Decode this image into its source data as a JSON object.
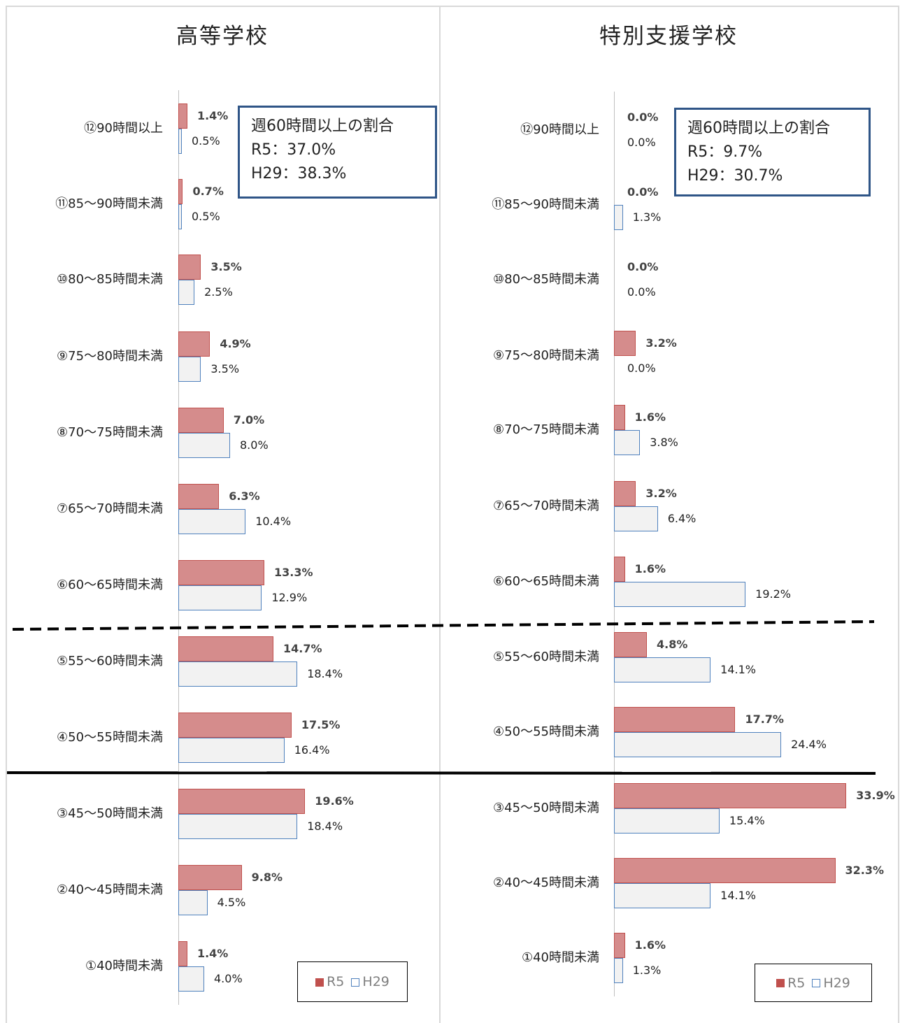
{
  "chart_data": [
    {
      "type": "bar",
      "title": "高等学校",
      "categories": [
        "⑫90時間以上",
        "⑪85～90時間未満",
        "⑩80～85時間未満",
        "⑨75～80時間未満",
        "⑧70～75時間未満",
        "⑦65～70時間未満",
        "⑥60～65時間未満",
        "⑤55～60時間未満",
        "④50～55時間未満",
        "③45～50時間未満",
        "②40～45時間未満",
        "①40時間未満"
      ],
      "series": [
        {
          "name": "R5",
          "values": [
            1.4,
            0.7,
            3.5,
            4.9,
            7.0,
            6.3,
            13.3,
            14.7,
            17.5,
            19.6,
            9.8,
            1.4
          ],
          "labels": [
            "1.4%",
            "0.7%",
            "3.5%",
            "4.9%",
            "7.0%",
            "6.3%",
            "13.3%",
            "14.7%",
            "17.5%",
            "19.6%",
            "9.8%",
            "1.4%"
          ]
        },
        {
          "name": "H29",
          "values": [
            0.5,
            0.5,
            2.5,
            3.5,
            8.0,
            10.4,
            12.9,
            18.4,
            16.4,
            18.4,
            4.5,
            4.0
          ],
          "labels": [
            "0.5%",
            "0.5%",
            "2.5%",
            "3.5%",
            "8.0%",
            "10.4%",
            "12.9%",
            "18.4%",
            "16.4%",
            "18.4%",
            "4.5%",
            "4.0%"
          ]
        }
      ],
      "note": {
        "title": "週60時間以上の割合",
        "r5": "R5：37.0%",
        "h29": "H29：38.3%"
      },
      "legend_position": "bottom-right",
      "xlim": [
        0,
        35
      ]
    },
    {
      "type": "bar",
      "title": "特別支援学校",
      "categories": [
        "⑫90時間以上",
        "⑪85～90時間未満",
        "⑩80～85時間未満",
        "⑨75～80時間未満",
        "⑧70～75時間未満",
        "⑦65～70時間未満",
        "⑥60～65時間未満",
        "⑤55～60時間未満",
        "④50～55時間未満",
        "③45～50時間未満",
        "②40～45時間未満",
        "①40時間未満"
      ],
      "series": [
        {
          "name": "R5",
          "values": [
            0.0,
            0.0,
            0.0,
            3.2,
            1.6,
            3.2,
            1.6,
            4.8,
            17.7,
            33.9,
            32.3,
            1.6
          ],
          "labels": [
            "0.0%",
            "0.0%",
            "0.0%",
            "3.2%",
            "1.6%",
            "3.2%",
            "1.6%",
            "4.8%",
            "17.7%",
            "33.9%",
            "32.3%",
            "1.6%"
          ]
        },
        {
          "name": "H29",
          "values": [
            0.0,
            1.3,
            0.0,
            0.0,
            3.8,
            6.4,
            19.2,
            14.1,
            24.4,
            15.4,
            14.1,
            1.3
          ],
          "labels": [
            "0.0%",
            "1.3%",
            "0.0%",
            "0.0%",
            "3.8%",
            "6.4%",
            "19.2%",
            "14.1%",
            "24.4%",
            "15.4%",
            "14.1%",
            "1.3%"
          ]
        }
      ],
      "note": {
        "title": "週60時間以上の割合",
        "r5": "R5：9.7%",
        "h29": "H29：30.7%"
      },
      "legend_position": "bottom-right",
      "xlim": [
        0,
        35
      ]
    }
  ],
  "legend": {
    "r5": "R5",
    "h29": "H29"
  },
  "colors": {
    "r5_fill": "#d58c8c",
    "r5_border": "#c0504d",
    "h29_fill": "#f2f2f2",
    "h29_border": "#4f81bd"
  }
}
